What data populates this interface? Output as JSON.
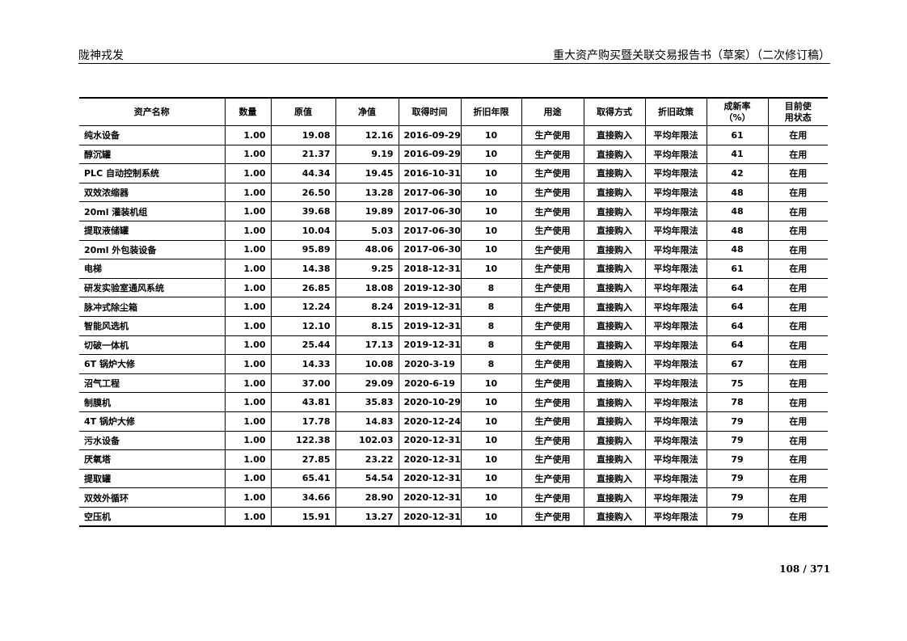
{
  "header": {
    "left": "陇神戎发",
    "right": "重大资产购买暨关联交易报告书（草案）（二次修订稿）"
  },
  "table": {
    "columns": [
      "资产名称",
      "数量",
      "原值",
      "净值",
      "取得时间",
      "折旧年限",
      "用途",
      "取得方式",
      "折旧政策",
      "成新率（%）",
      "目前使用状态"
    ],
    "rows": [
      [
        "纯水设备",
        "1.00",
        "19.08",
        "12.16",
        "2016-09-29",
        "10",
        "生产使用",
        "直接购入",
        "平均年限法",
        "61",
        "在用"
      ],
      [
        "醇沉罐",
        "1.00",
        "21.37",
        "9.19",
        "2016-09-29",
        "10",
        "生产使用",
        "直接购入",
        "平均年限法",
        "41",
        "在用"
      ],
      [
        "PLC 自动控制系统",
        "1.00",
        "44.34",
        "19.45",
        "2016-10-31",
        "10",
        "生产使用",
        "直接购入",
        "平均年限法",
        "42",
        "在用"
      ],
      [
        "双效浓缩器",
        "1.00",
        "26.50",
        "13.28",
        "2017-06-30",
        "10",
        "生产使用",
        "直接购入",
        "平均年限法",
        "48",
        "在用"
      ],
      [
        "20ml 灌装机组",
        "1.00",
        "39.68",
        "19.89",
        "2017-06-30",
        "10",
        "生产使用",
        "直接购入",
        "平均年限法",
        "48",
        "在用"
      ],
      [
        "提取液储罐",
        "1.00",
        "10.04",
        "5.03",
        "2017-06-30",
        "10",
        "生产使用",
        "直接购入",
        "平均年限法",
        "48",
        "在用"
      ],
      [
        "20ml 外包装设备",
        "1.00",
        "95.89",
        "48.06",
        "2017-06-30",
        "10",
        "生产使用",
        "直接购入",
        "平均年限法",
        "48",
        "在用"
      ],
      [
        "电梯",
        "1.00",
        "14.38",
        "9.25",
        "2018-12-31",
        "10",
        "生产使用",
        "直接购入",
        "平均年限法",
        "61",
        "在用"
      ],
      [
        "研发实验室通风系统",
        "1.00",
        "26.85",
        "18.08",
        "2019-12-30",
        "8",
        "生产使用",
        "直接购入",
        "平均年限法",
        "64",
        "在用"
      ],
      [
        "脉冲式除尘箱",
        "1.00",
        "12.24",
        "8.24",
        "2019-12-31",
        "8",
        "生产使用",
        "直接购入",
        "平均年限法",
        "64",
        "在用"
      ],
      [
        "智能风选机",
        "1.00",
        "12.10",
        "8.15",
        "2019-12-31",
        "8",
        "生产使用",
        "直接购入",
        "平均年限法",
        "64",
        "在用"
      ],
      [
        "切破一体机",
        "1.00",
        "25.44",
        "17.13",
        "2019-12-31",
        "8",
        "生产使用",
        "直接购入",
        "平均年限法",
        "64",
        "在用"
      ],
      [
        "6T 锅炉大修",
        "1.00",
        "14.33",
        "10.08",
        "2020-3-19",
        "8",
        "生产使用",
        "直接购入",
        "平均年限法",
        "67",
        "在用"
      ],
      [
        "沼气工程",
        "1.00",
        "37.00",
        "29.09",
        "2020-6-19",
        "10",
        "生产使用",
        "直接购入",
        "平均年限法",
        "75",
        "在用"
      ],
      [
        "制膜机",
        "1.00",
        "43.81",
        "35.83",
        "2020-10-29",
        "10",
        "生产使用",
        "直接购入",
        "平均年限法",
        "78",
        "在用"
      ],
      [
        "4T 锅炉大修",
        "1.00",
        "17.78",
        "14.83",
        "2020-12-24",
        "10",
        "生产使用",
        "直接购入",
        "平均年限法",
        "79",
        "在用"
      ],
      [
        "污水设备",
        "1.00",
        "122.38",
        "102.03",
        "2020-12-31",
        "10",
        "生产使用",
        "直接购入",
        "平均年限法",
        "79",
        "在用"
      ],
      [
        "厌氧塔",
        "1.00",
        "27.85",
        "23.22",
        "2020-12-31",
        "10",
        "生产使用",
        "直接购入",
        "平均年限法",
        "79",
        "在用"
      ],
      [
        "提取罐",
        "1.00",
        "65.41",
        "54.54",
        "2020-12-31",
        "10",
        "生产使用",
        "直接购入",
        "平均年限法",
        "79",
        "在用"
      ],
      [
        "双效外循环",
        "1.00",
        "34.66",
        "28.90",
        "2020-12-31",
        "10",
        "生产使用",
        "直接购入",
        "平均年限法",
        "79",
        "在用"
      ],
      [
        "空压机",
        "1.00",
        "15.91",
        "13.27",
        "2020-12-31",
        "10",
        "生产使用",
        "直接购入",
        "平均年限法",
        "79",
        "在用"
      ]
    ]
  },
  "footer": {
    "page": "108 / 371"
  }
}
